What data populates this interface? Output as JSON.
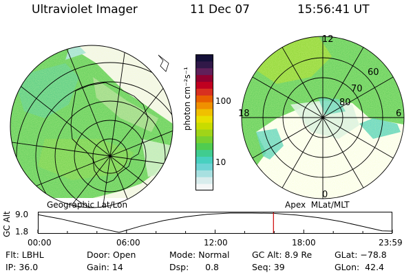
{
  "header": {
    "instrument": "Ultraviolet Imager",
    "date": "11 Dec 07",
    "time": "15:56:41 UT"
  },
  "colorbar": {
    "label": "photon cm⁻²s⁻¹",
    "ticks": [
      "100",
      "10"
    ],
    "colors": [
      "#f4f6f6",
      "#d8ecec",
      "#a8e0e0",
      "#6ed4d4",
      "#48d0c0",
      "#40cc90",
      "#50cc50",
      "#78d030",
      "#a0d418",
      "#c8dc00",
      "#e8e000",
      "#f0c000",
      "#f09000",
      "#e86000",
      "#d83020",
      "#c00020",
      "#900030",
      "#60205a",
      "#301848",
      "#141038"
    ]
  },
  "panels": {
    "left": {
      "label": "Geographic Lat/Lon"
    },
    "right": {
      "label": "Apex  MLat/MLT",
      "mlt_labels": {
        "top": "12",
        "left": "18",
        "right": "6",
        "bottom": "0"
      },
      "lat_labels": [
        "60",
        "70",
        "80"
      ]
    }
  },
  "altitude_plot": {
    "ylabel": "GC Alt",
    "yticks": [
      "9.0",
      "1.8"
    ],
    "xticks": [
      "00:00",
      "06:00",
      "12:00",
      "18:00",
      "23:59"
    ],
    "ymin": 1.8,
    "ymax": 9.0,
    "current_hour": 15.95,
    "orbit_curve": [
      {
        "h": 0.0,
        "alt": 8.4
      },
      {
        "h": 1.5,
        "alt": 6.9
      },
      {
        "h": 3.0,
        "alt": 5.0
      },
      {
        "h": 4.5,
        "alt": 3.0
      },
      {
        "h": 5.5,
        "alt": 1.8
      },
      {
        "h": 7.0,
        "alt": 4.2
      },
      {
        "h": 8.5,
        "alt": 6.2
      },
      {
        "h": 10.0,
        "alt": 7.6
      },
      {
        "h": 11.5,
        "alt": 8.6
      },
      {
        "h": 13.0,
        "alt": 9.0
      },
      {
        "h": 14.5,
        "alt": 9.0
      },
      {
        "h": 16.0,
        "alt": 8.9
      },
      {
        "h": 17.5,
        "alt": 8.3
      },
      {
        "h": 19.0,
        "alt": 7.3
      },
      {
        "h": 20.5,
        "alt": 5.9
      },
      {
        "h": 22.0,
        "alt": 4.0
      },
      {
        "h": 23.3,
        "alt": 2.4
      },
      {
        "h": 23.98,
        "alt": 2.3
      }
    ]
  },
  "info": {
    "filter": "Flt: LBHL",
    "ip": "IP: 36.0",
    "door": "Door: Open",
    "gain": "Gain: 14",
    "mode": "Mode: Normal",
    "dsp": "Dsp:      0.8",
    "gcalt": "GC Alt: 8.9 Re",
    "seq": "Seq: 39",
    "glat": "GLat: −78.8",
    "glon": "GLon:  42.4"
  }
}
